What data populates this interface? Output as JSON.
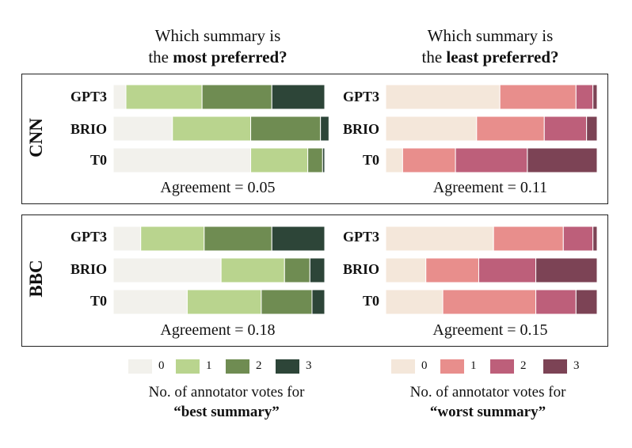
{
  "column_titles": {
    "best": {
      "line1": "Which summary is",
      "pre": "the ",
      "bold": "most preferred?"
    },
    "worst": {
      "line1": "Which summary is",
      "pre": "the ",
      "bold": "least preferred?"
    }
  },
  "legend": {
    "best": {
      "caption1": "No. of annotator votes for",
      "caption2": "“best summary”"
    },
    "worst": {
      "caption1": "No. of annotator votes for",
      "caption2": "“worst summary”"
    }
  },
  "colors": {
    "best": [
      "#f2f1ec",
      "#b9d48e",
      "#6f8c52",
      "#2d4538"
    ],
    "worst": [
      "#f4e7da",
      "#e88e8c",
      "#bd5f7a",
      "#7c4355"
    ]
  },
  "chart_data": [
    {
      "type": "bar",
      "stacked": true,
      "orientation": "horizontal",
      "dataset": "CNN",
      "question": "best",
      "categories": [
        "GPT3",
        "BRIO",
        "T0"
      ],
      "series": [
        {
          "name": "0",
          "values": [
            0.06,
            0.28,
            0.65
          ]
        },
        {
          "name": "1",
          "values": [
            0.36,
            0.37,
            0.27
          ]
        },
        {
          "name": "2",
          "values": [
            0.33,
            0.33,
            0.07
          ]
        },
        {
          "name": "3",
          "values": [
            0.25,
            0.04,
            0.01
          ]
        }
      ],
      "agreement": "Agreement = 0.05",
      "xlim": [
        0,
        1
      ]
    },
    {
      "type": "bar",
      "stacked": true,
      "orientation": "horizontal",
      "dataset": "CNN",
      "question": "worst",
      "categories": [
        "GPT3",
        "BRIO",
        "T0"
      ],
      "series": [
        {
          "name": "0",
          "values": [
            0.54,
            0.43,
            0.08
          ]
        },
        {
          "name": "1",
          "values": [
            0.36,
            0.32,
            0.25
          ]
        },
        {
          "name": "2",
          "values": [
            0.08,
            0.2,
            0.34
          ]
        },
        {
          "name": "3",
          "values": [
            0.02,
            0.05,
            0.33
          ]
        }
      ],
      "agreement": "Agreement = 0.11",
      "xlim": [
        0,
        1
      ]
    },
    {
      "type": "bar",
      "stacked": true,
      "orientation": "horizontal",
      "dataset": "BBC",
      "question": "best",
      "categories": [
        "GPT3",
        "BRIO",
        "T0"
      ],
      "series": [
        {
          "name": "0",
          "values": [
            0.13,
            0.51,
            0.35
          ]
        },
        {
          "name": "1",
          "values": [
            0.3,
            0.3,
            0.35
          ]
        },
        {
          "name": "2",
          "values": [
            0.32,
            0.12,
            0.24
          ]
        },
        {
          "name": "3",
          "values": [
            0.25,
            0.07,
            0.06
          ]
        }
      ],
      "agreement": "Agreement = 0.18",
      "xlim": [
        0,
        1
      ]
    },
    {
      "type": "bar",
      "stacked": true,
      "orientation": "horizontal",
      "dataset": "BBC",
      "question": "worst",
      "categories": [
        "GPT3",
        "BRIO",
        "T0"
      ],
      "series": [
        {
          "name": "0",
          "values": [
            0.51,
            0.19,
            0.27
          ]
        },
        {
          "name": "1",
          "values": [
            0.33,
            0.25,
            0.44
          ]
        },
        {
          "name": "2",
          "values": [
            0.14,
            0.27,
            0.19
          ]
        },
        {
          "name": "3",
          "values": [
            0.02,
            0.29,
            0.1
          ]
        }
      ],
      "agreement": "Agreement = 0.15",
      "xlim": [
        0,
        1
      ]
    }
  ]
}
